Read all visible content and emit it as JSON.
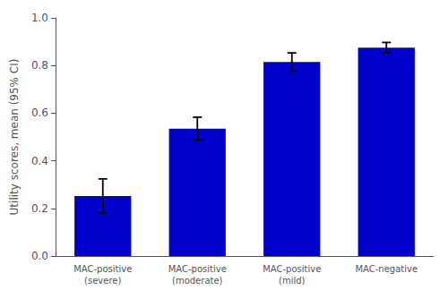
{
  "chart_data": {
    "type": "bar",
    "categories": [
      "MAC-positive\n(severe)",
      "MAC-positive\n(moderate)",
      "MAC-positive\n(mild)",
      "MAC-negative"
    ],
    "values": [
      0.252,
      0.535,
      0.815,
      0.875
    ],
    "errors": [
      0.072,
      0.048,
      0.038,
      0.022
    ],
    "color": "#0000CD",
    "ylabel": "Utility scores, mean (95% CI)",
    "ylim": [
      0.0,
      1.0
    ],
    "yticks": [
      {
        "value": 0,
        "label": "0.0"
      },
      0.2,
      0.4,
      0.6,
      0.8,
      {
        "value": 1,
        "label": "1.0"
      }
    ],
    "grid": false
  }
}
